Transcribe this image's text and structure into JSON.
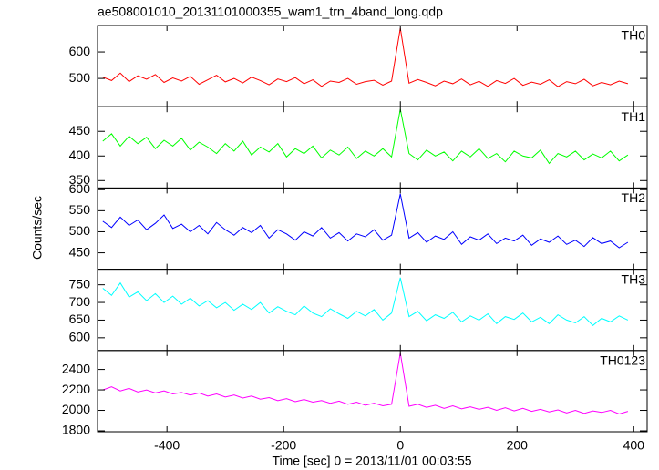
{
  "chart_data": {
    "type": "line",
    "title": "ae508001010_20131101000355_wam1_trn_4band_long.qdp",
    "xlabel": "Time [sec] 0 = 2013/11/01 00:03:55",
    "ylabel": "Counts/sec",
    "xlim": [
      -519,
      423
    ],
    "xticks": [
      -400,
      -200,
      0,
      200,
      400
    ],
    "x": [
      -510,
      -495,
      -480,
      -465,
      -450,
      -435,
      -420,
      -405,
      -390,
      -375,
      -360,
      -345,
      -330,
      -315,
      -300,
      -285,
      -270,
      -255,
      -240,
      -225,
      -210,
      -195,
      -180,
      -165,
      -150,
      -135,
      -120,
      -105,
      -90,
      -75,
      -60,
      -45,
      -30,
      -15,
      0,
      15,
      30,
      45,
      60,
      75,
      90,
      105,
      120,
      135,
      150,
      165,
      180,
      195,
      210,
      225,
      240,
      255,
      270,
      285,
      300,
      315,
      330,
      345,
      360,
      375,
      390
    ],
    "series": [
      {
        "name": "TH0",
        "color": "#ff0000",
        "ylim": [
          393,
          700
        ],
        "yticks": [
          500,
          600
        ],
        "values": [
          505,
          492,
          520,
          488,
          510,
          497,
          515,
          485,
          502,
          490,
          508,
          478,
          495,
          512,
          487,
          500,
          483,
          505,
          492,
          476,
          498,
          488,
          503,
          480,
          495,
          470,
          490,
          485,
          500,
          478,
          488,
          493,
          475,
          490,
          690,
          482,
          496,
          485,
          472,
          490,
          480,
          498,
          476,
          489,
          470,
          492,
          481,
          500,
          474,
          486,
          478,
          495,
          469,
          488,
          480,
          497,
          472,
          485,
          476,
          490,
          480
        ]
      },
      {
        "name": "TH1",
        "color": "#00ff00",
        "ylim": [
          335,
          500
        ],
        "yticks": [
          350,
          400,
          450
        ],
        "values": [
          430,
          445,
          420,
          440,
          425,
          438,
          415,
          432,
          420,
          436,
          412,
          428,
          418,
          405,
          425,
          410,
          430,
          402,
          418,
          408,
          425,
          398,
          415,
          405,
          420,
          396,
          412,
          402,
          418,
          395,
          410,
          400,
          415,
          398,
          495,
          405,
          392,
          412,
          400,
          408,
          390,
          410,
          398,
          415,
          395,
          405,
          388,
          410,
          400,
          396,
          412,
          385,
          405,
          398,
          410,
          392,
          404,
          396,
          410,
          390,
          402
        ]
      },
      {
        "name": "TH2",
        "color": "#0000ff",
        "ylim": [
          411,
          604
        ],
        "yticks": [
          450,
          500,
          550,
          600
        ],
        "values": [
          525,
          510,
          535,
          515,
          528,
          505,
          520,
          540,
          508,
          518,
          500,
          515,
          495,
          522,
          505,
          492,
          510,
          498,
          515,
          485,
          505,
          495,
          480,
          500,
          490,
          510,
          485,
          498,
          478,
          495,
          488,
          505,
          480,
          492,
          590,
          485,
          498,
          475,
          490,
          482,
          500,
          470,
          488,
          480,
          495,
          472,
          485,
          478,
          492,
          468,
          483,
          475,
          490,
          470,
          480,
          465,
          486,
          472,
          478,
          462,
          475
        ]
      },
      {
        "name": "TH3",
        "color": "#00ffff",
        "ylim": [
          564,
          794
        ],
        "yticks": [
          600,
          650,
          700,
          750
        ],
        "values": [
          740,
          720,
          755,
          715,
          730,
          705,
          725,
          700,
          718,
          695,
          712,
          690,
          705,
          685,
          700,
          678,
          695,
          680,
          700,
          670,
          688,
          675,
          665,
          690,
          670,
          660,
          682,
          668,
          655,
          675,
          662,
          680,
          650,
          670,
          770,
          660,
          675,
          648,
          665,
          655,
          672,
          645,
          662,
          650,
          668,
          640,
          660,
          652,
          670,
          645,
          658,
          640,
          665,
          650,
          642,
          660,
          635,
          655,
          645,
          662,
          650
        ]
      },
      {
        "name": "TH0123",
        "color": "#ff00ff",
        "ylim": [
          1791,
          2585
        ],
        "yticks": [
          1800,
          2000,
          2200,
          2400
        ],
        "values": [
          2200,
          2230,
          2190,
          2215,
          2180,
          2200,
          2170,
          2190,
          2160,
          2175,
          2150,
          2170,
          2140,
          2160,
          2130,
          2150,
          2120,
          2140,
          2110,
          2125,
          2095,
          2115,
          2085,
          2105,
          2080,
          2095,
          2070,
          2090,
          2060,
          2080,
          2050,
          2070,
          2045,
          2060,
          2560,
          2040,
          2060,
          2030,
          2050,
          2020,
          2045,
          2015,
          2035,
          2010,
          2030,
          2000,
          2025,
          1995,
          2020,
          1990,
          2010,
          1985,
          2005,
          1975,
          2000,
          1970,
          1995,
          1980,
          2000,
          1965,
          1990
        ]
      }
    ]
  }
}
